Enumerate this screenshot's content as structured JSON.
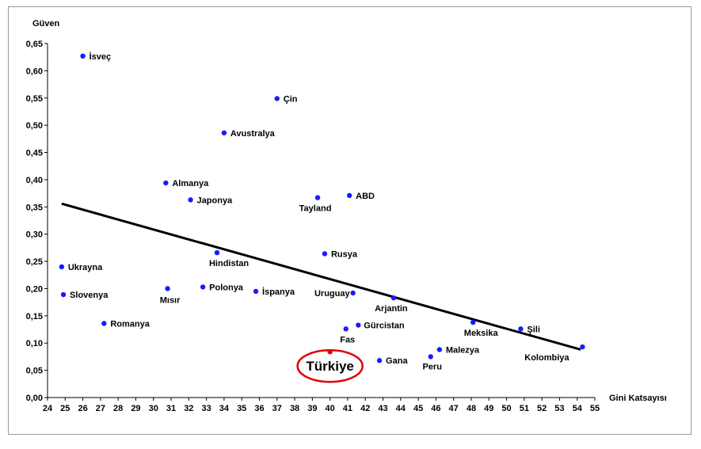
{
  "chart_data": {
    "type": "scatter",
    "title": "",
    "xlabel": "Gini Katsayısı",
    "ylabel": "Güven",
    "xlim": [
      24,
      55
    ],
    "ylim": [
      0,
      0.65
    ],
    "x_ticks": [
      24,
      25,
      26,
      27,
      28,
      29,
      30,
      31,
      32,
      33,
      34,
      35,
      36,
      37,
      38,
      39,
      40,
      41,
      42,
      43,
      44,
      45,
      46,
      47,
      48,
      49,
      50,
      51,
      52,
      53,
      54,
      55
    ],
    "y_ticks": [
      "0,00",
      "0,05",
      "0,10",
      "0,15",
      "0,20",
      "0,25",
      "0,30",
      "0,35",
      "0,40",
      "0,45",
      "0,50",
      "0,55",
      "0,60",
      "0,65"
    ],
    "grid": false,
    "point_color": "#1a1aff",
    "highlight_color": "#e00000",
    "trendline": {
      "x": [
        24.8,
        54.2
      ],
      "y": [
        0.356,
        0.088
      ]
    },
    "points": [
      {
        "label": "İsveç",
        "x": 26.0,
        "y": 0.627
      },
      {
        "label": "Çin",
        "x": 37.0,
        "y": 0.549
      },
      {
        "label": "Avustralya",
        "x": 34.0,
        "y": 0.486
      },
      {
        "label": "Almanya",
        "x": 30.7,
        "y": 0.394
      },
      {
        "label": "Japonya",
        "x": 32.1,
        "y": 0.363
      },
      {
        "label": "Tayland",
        "x": 39.3,
        "y": 0.367
      },
      {
        "label": "ABD",
        "x": 41.1,
        "y": 0.371
      },
      {
        "label": "Hindistan",
        "x": 33.6,
        "y": 0.266
      },
      {
        "label": "Rusya",
        "x": 39.7,
        "y": 0.264
      },
      {
        "label": "Ukrayna",
        "x": 24.8,
        "y": 0.24
      },
      {
        "label": "Slovenya",
        "x": 24.9,
        "y": 0.189
      },
      {
        "label": "Mısır",
        "x": 30.8,
        "y": 0.2
      },
      {
        "label": "Polonya",
        "x": 32.8,
        "y": 0.203
      },
      {
        "label": "İspanya",
        "x": 35.8,
        "y": 0.195
      },
      {
        "label": "Uruguay",
        "x": 41.3,
        "y": 0.192
      },
      {
        "label": "Arjantin",
        "x": 43.6,
        "y": 0.183
      },
      {
        "label": "Romanya",
        "x": 27.2,
        "y": 0.136
      },
      {
        "label": "Fas",
        "x": 40.9,
        "y": 0.126
      },
      {
        "label": "Gürcistan",
        "x": 41.6,
        "y": 0.133
      },
      {
        "label": "Meksika",
        "x": 48.1,
        "y": 0.138
      },
      {
        "label": "Şili",
        "x": 50.8,
        "y": 0.126
      },
      {
        "label": "Kolombiya",
        "x": 54.3,
        "y": 0.093
      },
      {
        "label": "Malezya",
        "x": 46.2,
        "y": 0.088
      },
      {
        "label": "Peru",
        "x": 45.7,
        "y": 0.075
      },
      {
        "label": "Gana",
        "x": 42.8,
        "y": 0.068
      }
    ],
    "highlight": {
      "label": "Türkiye",
      "x": 40.0,
      "y": 0.084
    }
  }
}
